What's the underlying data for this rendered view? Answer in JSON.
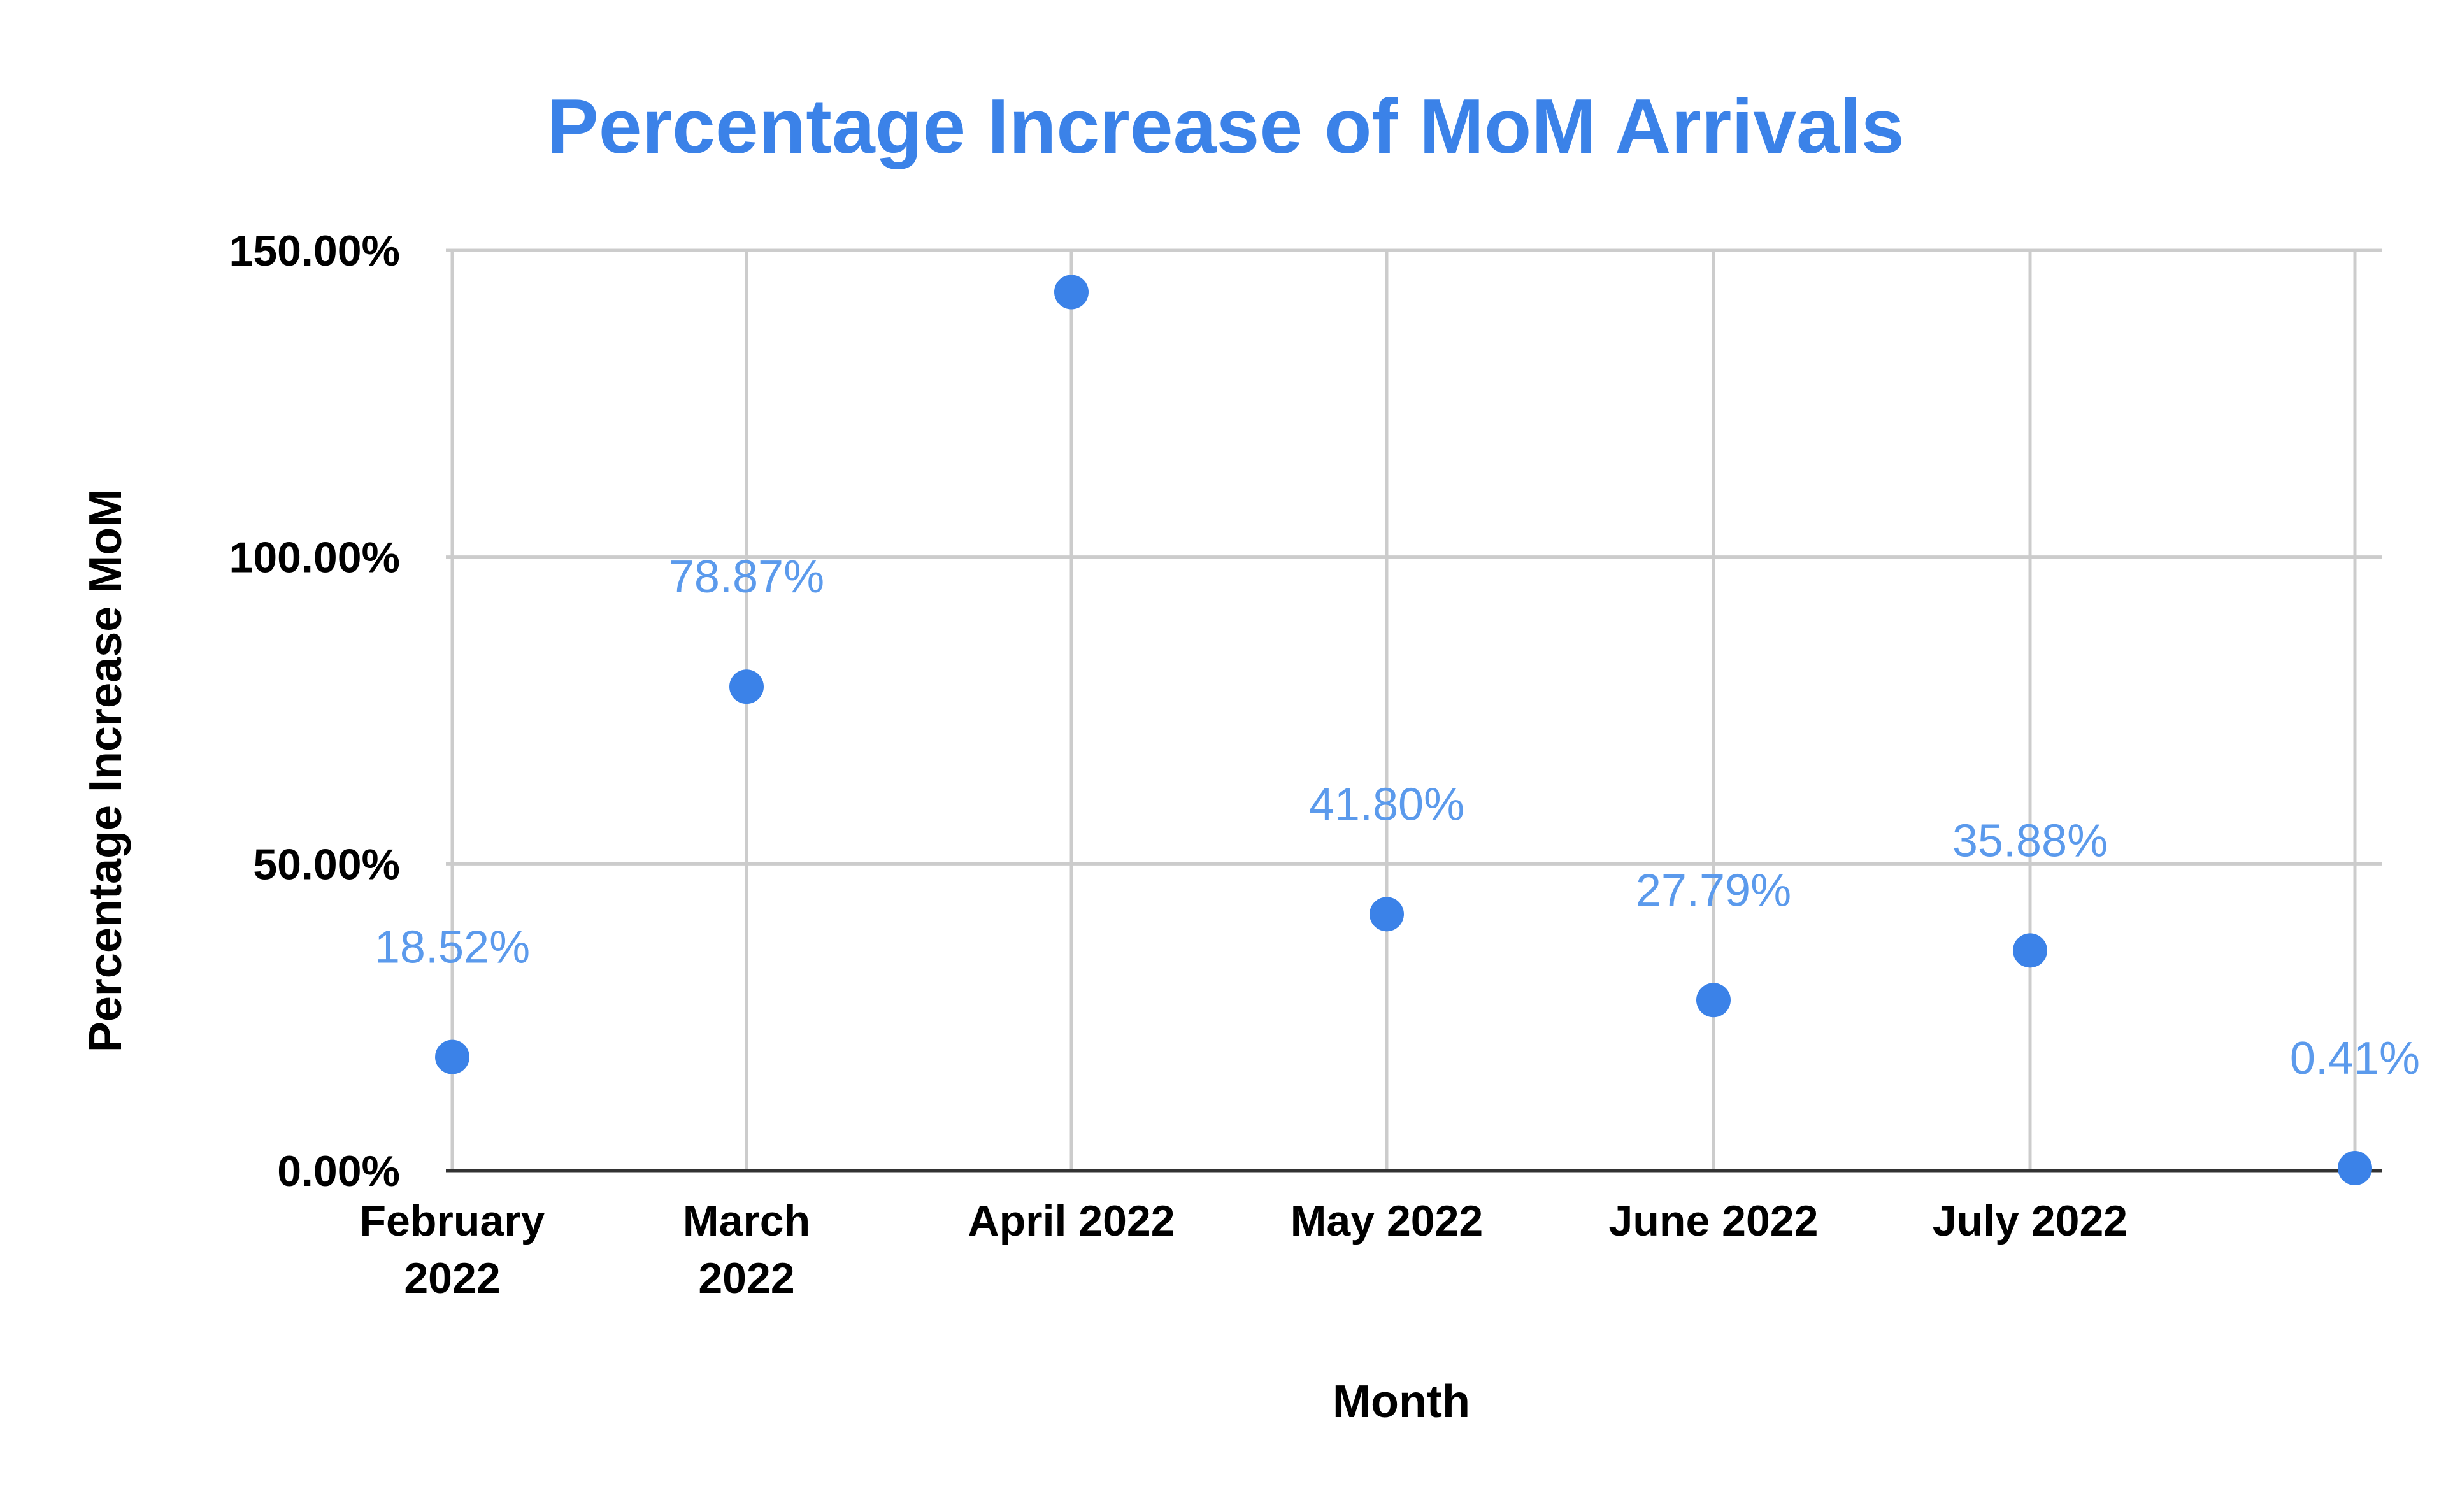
{
  "chart_data": {
    "type": "scatter",
    "title": "Percentage Increase of MoM Arrivals",
    "xlabel": "Month",
    "ylabel": "Percentage Increase MoM",
    "categories": [
      "February 2022",
      "March 2022",
      "April 2022",
      "May 2022",
      "June 2022",
      "July 2022",
      ""
    ],
    "category_label_lines": [
      [
        "February",
        "2022"
      ],
      [
        "March",
        "2022"
      ],
      [
        "April 2022"
      ],
      [
        "May 2022"
      ],
      [
        "June 2022"
      ],
      [
        "July 2022"
      ],
      []
    ],
    "values": [
      18.52,
      78.87,
      143.2,
      41.8,
      27.79,
      35.88,
      0.41
    ],
    "data_labels": [
      "18.52%",
      "78.87%",
      "",
      "41.80%",
      "27.79%",
      "35.88%",
      "0.41%"
    ],
    "yticks": [
      "0.00%",
      "50.00%",
      "100.00%",
      "150.00%"
    ],
    "ylim": [
      0,
      150
    ],
    "grid": true,
    "legend": "none",
    "colors": {
      "series": "#3b82e8",
      "title": "#3b82e8",
      "label": "#5b9aec"
    }
  }
}
